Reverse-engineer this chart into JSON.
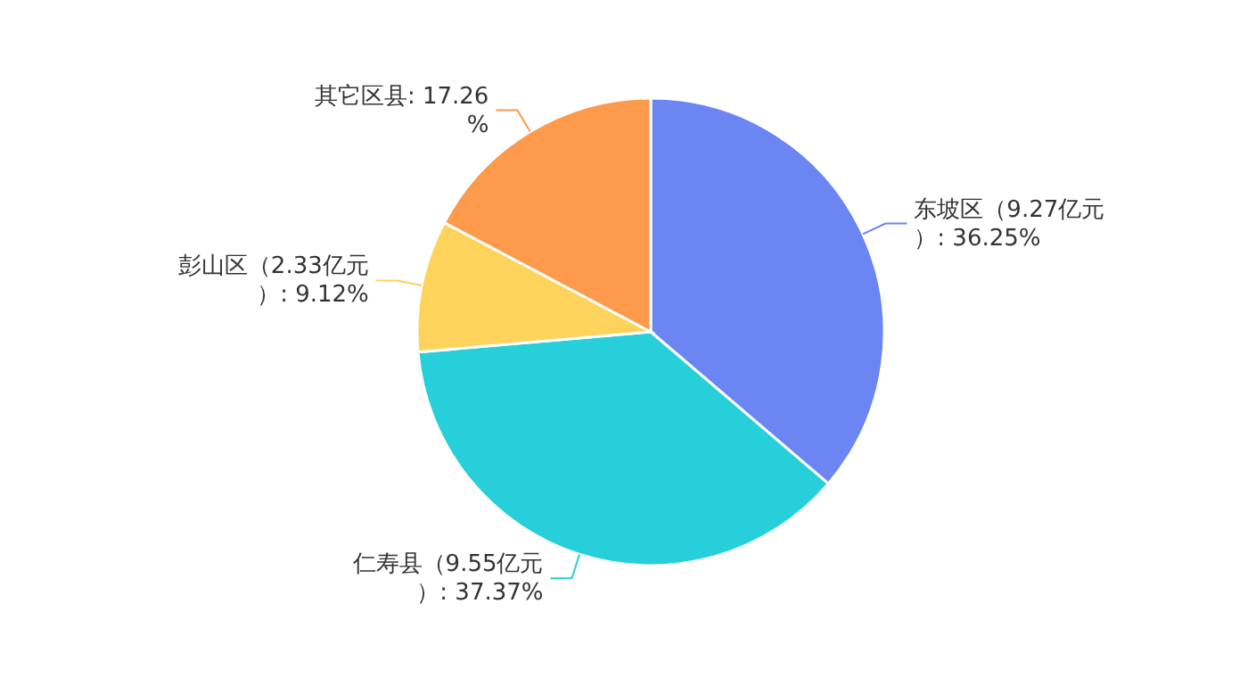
{
  "chart_data": {
    "type": "pie",
    "categories": [
      "东坡区（9.27亿元）",
      "仁寿县（9.55亿元）",
      "彭山区（2.33亿元）",
      "其它区县"
    ],
    "values": [
      36.25,
      37.37,
      9.12,
      17.26
    ],
    "value_labels": [
      "36.25%",
      "37.37%",
      "9.12%",
      "17.26%"
    ],
    "colors": [
      "#6b85f3",
      "#26cfda",
      "#fdd35b",
      "#fd9a4c"
    ]
  }
}
